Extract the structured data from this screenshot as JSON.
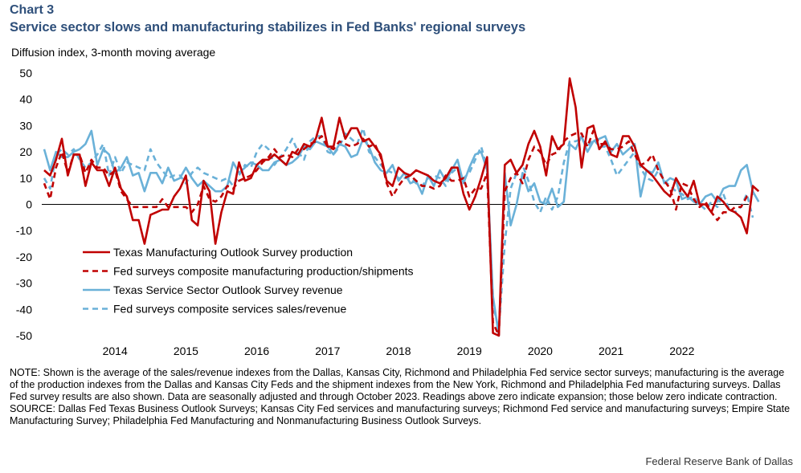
{
  "header": {
    "chart_label": "Chart 3",
    "title": "Service sector slows and manufacturing stabilizes in Fed Banks' regional surveys",
    "units": "Diffusion index, 3-month moving average"
  },
  "footer": {
    "note": "NOTE: Shown is the average of the sales/revenue indexes from the Dallas, Kansas City, Richmond and Philadelphia Fed service sector surveys; manufacturing is the average of the production indexes from the Dallas and Kansas City Feds and the shipment indexes from the New York, Richmond and Philadelphia Fed manufacturing surveys. Dallas Fed survey results are also shown. Data are seasonally adjusted and through October 2023. Readings above zero indicate expansion; those below zero indicate contraction.",
    "source": "SOURCE: Dallas Fed Texas Business Outlook Surveys; Kansas City Fed services and manufacturing surveys; Richmond Fed service and manufacturing surveys; Empire State Manufacturing Survey; Philadelphia Fed Manufacturing and Nonmanufacturing Business Outlook Surveys.",
    "credit": "Federal Reserve Bank of Dallas"
  },
  "chart_data": {
    "type": "line",
    "x_start": "2013-07",
    "x_frequency": "monthly",
    "ylim": [
      -50,
      50
    ],
    "yticks": [
      50,
      40,
      30,
      20,
      10,
      0,
      -10,
      -20,
      -30,
      -40,
      -50
    ],
    "xticks": [
      "2014",
      "2015",
      "2016",
      "2017",
      "2018",
      "2019",
      "2020",
      "2021",
      "2022"
    ],
    "grid": false,
    "legend_position": "bottom-left",
    "series": [
      {
        "name": "Texas  Manufacturing Outlook Survey production",
        "color": "#c00000",
        "dash": "solid",
        "values": [
          13,
          11,
          17,
          25,
          11,
          19,
          19,
          7,
          16,
          13,
          13,
          7,
          14,
          6,
          3,
          -6,
          -6,
          -15,
          -4,
          -3,
          -2,
          -2,
          3,
          6,
          11,
          -6,
          -8,
          9,
          5,
          -15,
          -3,
          5,
          4,
          16,
          9,
          10,
          15,
          17,
          17,
          19,
          17,
          15,
          20,
          19,
          23,
          22,
          25,
          33,
          22,
          22,
          33,
          25,
          29,
          29,
          24,
          25,
          22,
          19,
          9,
          7,
          14,
          12,
          11,
          13,
          12,
          11,
          9,
          8,
          10,
          14,
          14,
          4,
          -2,
          3,
          10,
          18,
          -49,
          -51,
          15,
          17,
          12,
          15,
          23,
          28,
          22,
          11,
          26,
          21,
          23,
          48,
          37,
          14,
          29,
          30,
          21,
          24,
          19,
          18,
          26,
          26,
          22,
          15,
          13,
          11,
          8,
          5,
          3,
          10,
          6,
          3,
          9,
          0,
          0,
          -3,
          3,
          1,
          -2,
          -3,
          -5,
          -11,
          7,
          5
        ]
      },
      {
        "name": "Fed surveys composite manufacturing production/shipments",
        "color": "#c00000",
        "dash": "dashed",
        "values": [
          8,
          2,
          14,
          20,
          12,
          19,
          19,
          12,
          17,
          14,
          14,
          11,
          13,
          5,
          2,
          -1,
          -1,
          -1,
          -1,
          -1,
          2,
          -1,
          -1,
          -1,
          -1,
          -3,
          0,
          7,
          2,
          1,
          3,
          7,
          6,
          9,
          10,
          11,
          13,
          16,
          18,
          21,
          18,
          19,
          18,
          21,
          21,
          23,
          24,
          26,
          22,
          21,
          24,
          23,
          22,
          23,
          25,
          22,
          23,
          18,
          8,
          3,
          7,
          10,
          11,
          9,
          7,
          7,
          6,
          7,
          11,
          9,
          9,
          10,
          3,
          6,
          6,
          12,
          -45,
          -50,
          5,
          10,
          12,
          8,
          17,
          22,
          20,
          15,
          19,
          20,
          24,
          26,
          27,
          27,
          22,
          28,
          23,
          23,
          21,
          21,
          22,
          24,
          19,
          15,
          16,
          19,
          13,
          9,
          6,
          -2,
          8,
          7,
          2,
          -1,
          1,
          -3,
          -6,
          -3,
          -3,
          -1,
          -1,
          3,
          4
        ]
      },
      {
        "name": "Texas Service Sector Outlook Survey revenue",
        "color": "#6ab1d8",
        "dash": "solid",
        "values": [
          21,
          13,
          20,
          18,
          18,
          20,
          21,
          23,
          28,
          15,
          21,
          19,
          12,
          14,
          18,
          11,
          12,
          5,
          12,
          12,
          8,
          14,
          9,
          10,
          14,
          10,
          7,
          9,
          7,
          5,
          5,
          7,
          16,
          12,
          14,
          16,
          15,
          13,
          13,
          16,
          17,
          15,
          16,
          18,
          22,
          21,
          24,
          23,
          22,
          19,
          23,
          22,
          18,
          19,
          25,
          22,
          16,
          13,
          12,
          15,
          9,
          12,
          8,
          9,
          4,
          11,
          7,
          13,
          9,
          13,
          17,
          8,
          14,
          19,
          20,
          13,
          -35,
          -52,
          12,
          -8,
          0,
          12,
          5,
          8,
          1,
          0,
          6,
          -1,
          1,
          23,
          21,
          26,
          20,
          24,
          25,
          26,
          20,
          23,
          19,
          21,
          23,
          3,
          13,
          12,
          16,
          8,
          10,
          9,
          2,
          3,
          1,
          0,
          3,
          4,
          1,
          6,
          7,
          7,
          13,
          15,
          5,
          1
        ]
      },
      {
        "name": "Fed surveys composite services sales/revenue",
        "color": "#6ab1d8",
        "dash": "dashed",
        "values": [
          10,
          6,
          19,
          21,
          19,
          21,
          17,
          14,
          16,
          19,
          23,
          11,
          18,
          12,
          16,
          15,
          14,
          13,
          21,
          16,
          13,
          10,
          11,
          11,
          8,
          12,
          14,
          12,
          11,
          10,
          9,
          10,
          7,
          11,
          15,
          14,
          20,
          23,
          21,
          15,
          18,
          21,
          25,
          20,
          17,
          24,
          26,
          26,
          20,
          19,
          22,
          27,
          25,
          23,
          29,
          20,
          18,
          15,
          13,
          12,
          10,
          10,
          10,
          8,
          7,
          10,
          11,
          10,
          7,
          12,
          14,
          10,
          12,
          17,
          22,
          14,
          -38,
          -48,
          -15,
          6,
          12,
          15,
          9,
          1,
          -3,
          3,
          -2,
          3,
          16,
          24,
          24,
          25,
          22,
          25,
          22,
          22,
          17,
          11,
          14,
          17,
          20,
          14,
          10,
          9,
          13,
          9,
          7,
          5,
          4,
          2,
          3,
          0,
          -2,
          1,
          -1,
          4,
          -2,
          -3,
          -1,
          4,
          -5
        ]
      }
    ]
  }
}
